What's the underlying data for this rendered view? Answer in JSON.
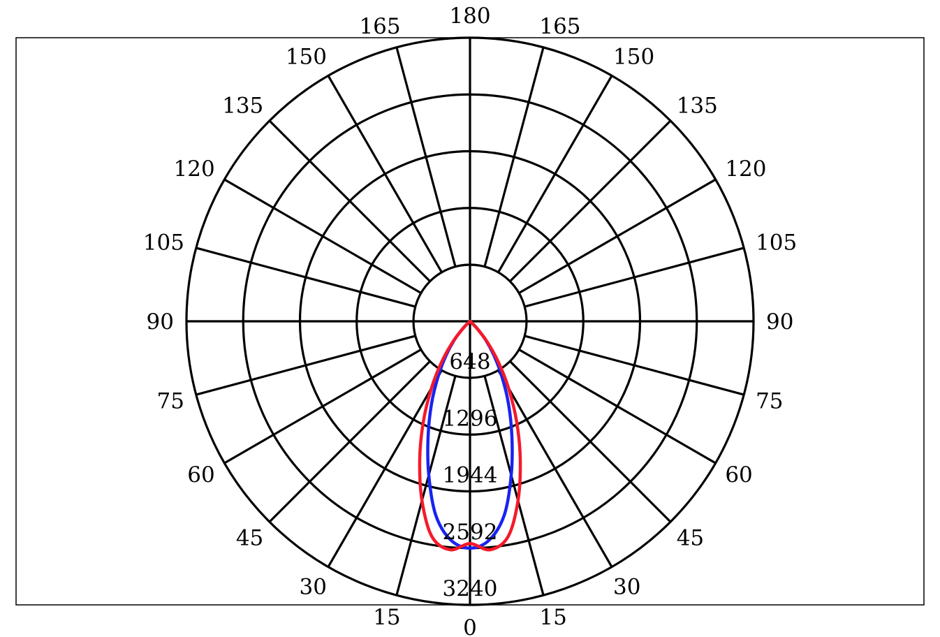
{
  "chart_data": {
    "type": "polar",
    "radial_ticks": [
      648,
      1296,
      1944,
      2592,
      3240
    ],
    "radial_max": 3240,
    "angle_labels_left": [
      "0",
      "15",
      "30",
      "45",
      "60",
      "75",
      "90",
      "105",
      "120",
      "135",
      "150",
      "165",
      "180"
    ],
    "angle_labels_right": [
      "15",
      "30",
      "45",
      "60",
      "75",
      "90",
      "105",
      "120",
      "135",
      "150",
      "165"
    ],
    "grid": true,
    "colors": {
      "series1": "#1a23f0",
      "series2": "#f41a2a",
      "grid": "#000000"
    },
    "series": [
      {
        "color": "blue",
        "angles": [
          0,
          5,
          10,
          15,
          20,
          25,
          30,
          35,
          40,
          45,
          50
        ],
        "values": [
          2592,
          2510,
          2250,
          1820,
          1400,
          1040,
          730,
          480,
          280,
          110,
          0
        ]
      },
      {
        "color": "red",
        "angles": [
          0,
          5,
          10,
          15,
          20,
          25,
          30,
          35,
          40,
          45,
          50
        ],
        "values": [
          2540,
          2620,
          2500,
          2120,
          1680,
          1260,
          880,
          560,
          300,
          100,
          0
        ]
      }
    ]
  }
}
